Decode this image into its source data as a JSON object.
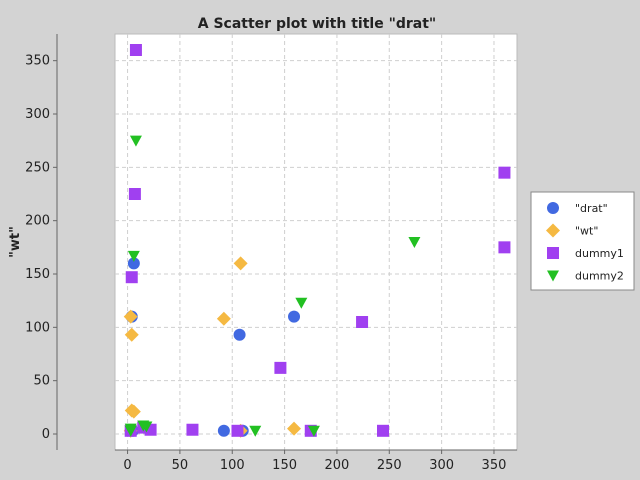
{
  "chart_data": {
    "type": "scatter",
    "title": "A Scatter plot with title \"drat\"",
    "xlabel": "",
    "ylabel": "\"wt\"",
    "xlim": [
      -12,
      372
    ],
    "ylim": [
      -15,
      375
    ],
    "xticks": [
      0,
      50,
      100,
      150,
      200,
      250,
      300,
      350
    ],
    "yticks": [
      0,
      50,
      100,
      150,
      200,
      250,
      300,
      350
    ],
    "grid": true,
    "legend_position": "right",
    "series": [
      {
        "name": "\"drat\"",
        "marker": "circle",
        "color": "#4169e1",
        "points": [
          [
            3,
            3
          ],
          [
            5,
            3
          ],
          [
            4,
            110
          ],
          [
            6,
            160
          ],
          [
            92,
            3
          ],
          [
            107,
            93
          ],
          [
            110,
            3
          ],
          [
            159,
            110
          ]
        ]
      },
      {
        "name": "\"wt\"",
        "marker": "diamond",
        "color": "#f5b942",
        "points": [
          [
            3,
            110
          ],
          [
            4,
            93
          ],
          [
            4,
            22
          ],
          [
            6,
            21
          ],
          [
            3,
            3
          ],
          [
            92,
            108
          ],
          [
            108,
            160
          ],
          [
            108,
            3
          ],
          [
            159,
            5
          ]
        ]
      },
      {
        "name": "dummy1",
        "marker": "square",
        "color": "#a040f0",
        "points": [
          [
            8,
            360
          ],
          [
            7,
            225
          ],
          [
            4,
            147
          ],
          [
            3,
            3
          ],
          [
            15,
            6
          ],
          [
            22,
            4
          ],
          [
            62,
            4
          ],
          [
            105,
            3
          ],
          [
            146,
            62
          ],
          [
            175,
            3
          ],
          [
            224,
            105
          ],
          [
            244,
            3
          ],
          [
            360,
            245
          ],
          [
            360,
            175
          ]
        ]
      },
      {
        "name": "dummy2",
        "marker": "triangle-down",
        "color": "#22c022",
        "points": [
          [
            8,
            275
          ],
          [
            6,
            167
          ],
          [
            3,
            5
          ],
          [
            3,
            3
          ],
          [
            15,
            8
          ],
          [
            18,
            7
          ],
          [
            122,
            3
          ],
          [
            166,
            123
          ],
          [
            178,
            3
          ],
          [
            274,
            180
          ]
        ]
      }
    ]
  }
}
